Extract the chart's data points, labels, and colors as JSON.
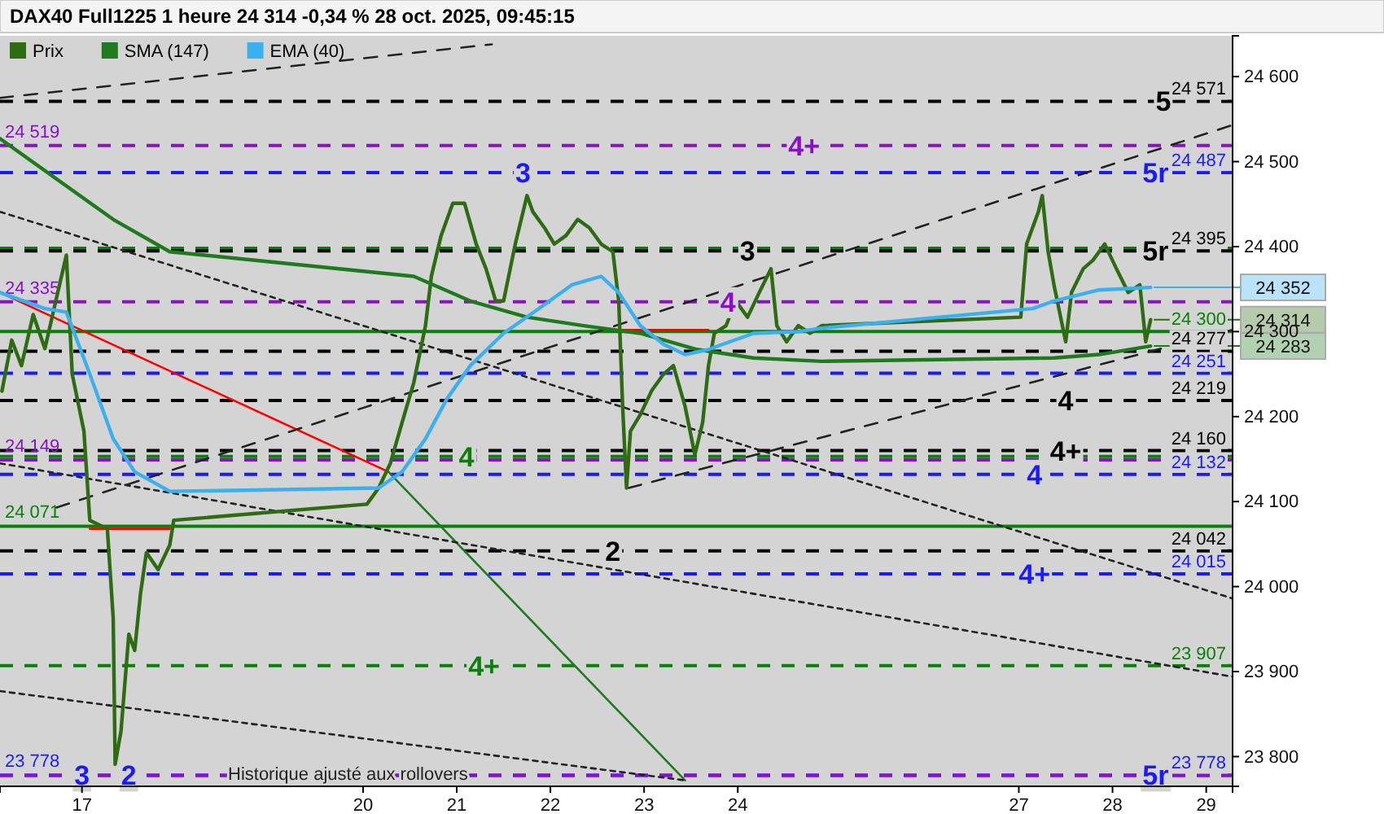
{
  "chart_data": {
    "type": "line",
    "title": "DAX40 Full1225 1 heure 24 314 -0,34 % 28 oct. 2025, 09:45:15",
    "xlim": [
      "2025-10-16T03:00",
      "2025-10-29T06:45"
    ],
    "ylim": [
      23765,
      24648
    ],
    "xticks": [
      {
        "value": "2025-10-17",
        "label": "17"
      },
      {
        "value": "2025-10-20",
        "label": "20"
      },
      {
        "value": "2025-10-21",
        "label": "21"
      },
      {
        "value": "2025-10-22",
        "label": "22"
      },
      {
        "value": "2025-10-23",
        "label": "23"
      },
      {
        "value": "2025-10-24",
        "label": "24"
      },
      {
        "value": "2025-10-27",
        "label": "27"
      },
      {
        "value": "2025-10-28",
        "label": "28"
      },
      {
        "value": "2025-10-29",
        "label": "29"
      }
    ],
    "yticks": [
      {
        "value": 23800,
        "label": "23 800"
      },
      {
        "value": 23900,
        "label": "23 900"
      },
      {
        "value": 24000,
        "label": "24 000"
      },
      {
        "value": 24100,
        "label": "24 100"
      },
      {
        "value": 24200,
        "label": "24 200"
      },
      {
        "value": 24300,
        "label": "24 300"
      },
      {
        "value": 24400,
        "label": "24 400"
      },
      {
        "value": 24500,
        "label": "24 500"
      },
      {
        "value": 24600,
        "label": "24 600"
      }
    ],
    "legend": "top left",
    "series": [
      {
        "name": "Prix",
        "color": "#2e6b12",
        "line_style": "solid",
        "x": [
          "2025-10-16T03:30",
          "2025-10-16T06:00",
          "2025-10-16T08:30",
          "2025-10-16T11:30",
          "2025-10-16T14:30",
          "2025-10-16T17:30",
          "2025-10-16T20:00",
          "2025-10-16T21:30",
          "2025-10-17T00:30",
          "2025-10-17T02:00",
          "2025-10-17T06:30",
          "2025-10-17T08:00",
          "2025-10-17T08:30",
          "2025-10-17T10:00",
          "2025-10-17T12:00",
          "2025-10-17T13:30",
          "2025-10-17T15:00",
          "2025-10-17T16:30",
          "2025-10-17T19:30",
          "2025-10-17T22:30",
          "2025-10-17T23:30",
          "2025-10-20T01:00",
          "2025-10-20T04:00",
          "2025-10-20T07:00",
          "2025-10-20T10:00",
          "2025-10-20T13:00",
          "2025-10-20T16:00",
          "2025-10-20T17:30",
          "2025-10-20T20:00",
          "2025-10-20T23:00",
          "2025-10-21T02:00",
          "2025-10-21T05:00",
          "2025-10-21T07:30",
          "2025-10-21T10:00",
          "2025-10-21T12:00",
          "2025-10-21T15:00",
          "2025-10-21T18:00",
          "2025-10-21T19:30",
          "2025-10-21T22:30",
          "2025-10-22T01:00",
          "2025-10-22T04:00",
          "2025-10-22T07:00",
          "2025-10-22T10:00",
          "2025-10-22T13:00",
          "2025-10-22T16:00",
          "2025-10-22T17:30",
          "2025-10-22T18:30",
          "2025-10-22T19:30",
          "2025-10-22T20:30",
          "2025-10-22T23:00",
          "2025-10-23T02:00",
          "2025-10-23T05:00",
          "2025-10-23T07:30",
          "2025-10-23T10:30",
          "2025-10-23T13:00",
          "2025-10-23T15:00",
          "2025-10-23T16:30",
          "2025-10-23T18:00",
          "2025-10-23T21:00",
          "2025-10-23T23:30",
          "2025-10-24T02:30",
          "2025-10-24T05:30",
          "2025-10-24T08:30",
          "2025-10-24T10:00",
          "2025-10-24T12:30",
          "2025-10-24T15:30",
          "2025-10-24T18:30",
          "2025-10-24T21:30",
          "2025-10-27T00:30",
          "2025-10-27T02:00",
          "2025-10-27T05:00",
          "2025-10-27T06:00",
          "2025-10-27T07:30",
          "2025-10-27T09:00",
          "2025-10-27T12:00",
          "2025-10-27T13:30",
          "2025-10-27T16:30",
          "2025-10-27T19:00",
          "2025-10-27T22:00",
          "2025-10-28T01:00",
          "2025-10-28T04:00",
          "2025-10-28T07:00",
          "2025-10-28T08:30",
          "2025-10-28T09:45"
        ],
        "values": [
          24230,
          24290,
          24260,
          24320,
          24280,
          24340,
          24390,
          24250,
          24183,
          24078,
          24068,
          23963,
          23791,
          23830,
          23944,
          23925,
          23992,
          24040,
          24020,
          24049,
          24078,
          24097,
          24116,
          24145,
          24193,
          24240,
          24307,
          24365,
          24413,
          24451,
          24451,
          24403,
          24374,
          24336,
          24336,
          24403,
          24460,
          24441,
          24422,
          24403,
          24413,
          24432,
          24422,
          24403,
          24394,
          24336,
          24212,
          24116,
          24183,
          24202,
          24231,
          24250,
          24260,
          24212,
          24155,
          24193,
          24260,
          24298,
          24307,
          24336,
          24317,
          24346,
          24374,
          24307,
          24288,
          24307,
          24298,
          24307,
          24317,
          24403,
          24441,
          24460,
          24394,
          24355,
          24288,
          24346,
          24374,
          24384,
          24403,
          24374,
          24346,
          24355,
          24288,
          24314
        ],
        "value_labels": [
          null,
          null,
          null,
          null,
          null,
          null,
          null,
          null,
          null,
          null,
          null,
          null,
          null,
          null,
          null,
          null,
          null,
          null,
          null,
          null,
          null,
          null,
          null,
          null,
          null,
          null,
          null,
          null,
          null,
          null,
          null,
          null,
          null,
          null,
          null,
          null,
          null,
          null,
          null,
          null,
          null,
          null,
          null,
          null,
          null,
          null,
          null,
          null,
          null,
          null,
          null,
          null,
          null,
          null,
          null,
          null,
          null,
          null,
          null,
          null,
          null,
          null,
          null,
          null,
          null,
          null,
          null,
          null,
          null,
          null,
          null,
          null,
          null,
          null,
          null,
          null,
          null,
          null,
          null,
          null,
          null,
          null,
          null,
          "24 314"
        ]
      },
      {
        "name": "SMA (147)",
        "color": "#1f7a1f",
        "line_style": "solid",
        "x": [
          "2025-10-16T03:00",
          "2025-10-17T08:00",
          "2025-10-17T22:30",
          "2025-10-20T13:00",
          "2025-10-21T03:30",
          "2025-10-21T18:00",
          "2025-10-22T08:30",
          "2025-10-22T23:00",
          "2025-10-23T13:30",
          "2025-10-24T04:00",
          "2025-10-24T21:30",
          "2025-10-27T09:00",
          "2025-10-27T20:30",
          "2025-10-28T09:45"
        ],
        "values": [
          24527,
          24432,
          24394,
          24365,
          24336,
          24317,
          24307,
          24298,
          24279,
          24269,
          24265,
          24269,
          24273,
          24283
        ],
        "value_labels": [
          null,
          null,
          null,
          null,
          null,
          null,
          null,
          null,
          null,
          null,
          null,
          null,
          null,
          "24 283"
        ]
      },
      {
        "name": "EMA (40)",
        "color": "#3ab0f0",
        "line_style": "solid",
        "x": [
          "2025-10-16T03:00",
          "2025-10-16T14:30",
          "2025-10-16T20:00",
          "2025-10-17T02:00",
          "2025-10-17T08:00",
          "2025-10-17T13:30",
          "2025-10-17T22:30",
          "2025-10-20T04:00",
          "2025-10-20T10:00",
          "2025-10-20T16:00",
          "2025-10-20T21:30",
          "2025-10-21T03:30",
          "2025-10-21T12:00",
          "2025-10-21T21:00",
          "2025-10-22T05:30",
          "2025-10-22T13:00",
          "2025-10-22T17:30",
          "2025-10-22T23:00",
          "2025-10-23T05:00",
          "2025-10-23T10:30",
          "2025-10-23T16:30",
          "2025-10-24T04:00",
          "2025-10-24T15:30",
          "2025-10-24T21:30",
          "2025-10-27T03:30",
          "2025-10-27T09:00",
          "2025-10-27T20:30",
          "2025-10-28T09:45"
        ],
        "values": [
          24346,
          24327,
          24323,
          24250,
          24174,
          24135,
          24112,
          24116,
          24135,
          24174,
          24221,
          24260,
          24298,
          24327,
          24355,
          24365,
          24346,
          24307,
          24285,
          24273,
          24279,
          24298,
          24300,
          24304,
          24327,
          24336,
          24349,
          24352
        ],
        "value_labels": [
          null,
          null,
          null,
          null,
          null,
          null,
          null,
          null,
          null,
          null,
          null,
          null,
          null,
          null,
          null,
          null,
          null,
          null,
          null,
          null,
          null,
          null,
          null,
          null,
          null,
          null,
          null,
          "24 352"
        ]
      },
      {
        "color": "#ff0000",
        "line_style": "solid",
        "x": [
          "2025-10-16T03:00",
          "2025-10-20T06:30"
        ],
        "values": [
          24346,
          24135
        ]
      },
      {
        "color": "#ff0000",
        "line_style": "solid",
        "x": [
          "2025-10-17T02:00",
          "2025-10-17T22:30"
        ],
        "values": [
          24068,
          24068
        ]
      },
      {
        "color": "#ff0000",
        "line_style": "solid",
        "x": [
          "2025-10-22T18:30",
          "2025-10-23T16:30"
        ],
        "values": [
          24302,
          24302
        ]
      },
      {
        "color": "#1f7a1f",
        "line_style": "solid",
        "x": [
          "2025-10-20T06:30",
          "2025-10-23T10:30"
        ],
        "values": [
          24135,
          23772
        ]
      },
      {
        "color": "#222222",
        "line_style": "dashed",
        "x": [
          "2025-10-16T03:00",
          "2025-10-21T09:00"
        ],
        "values": [
          24575,
          24638
        ]
      },
      {
        "color": "#222222",
        "line_style": "dashed",
        "x": [
          "2025-10-16T17:30",
          "2025-10-29T06:45"
        ],
        "values": [
          24093,
          24543
        ]
      },
      {
        "color": "#222222",
        "line_style": "dashed",
        "x": [
          "2025-10-22T20:00",
          "2025-10-29T06:45"
        ],
        "values": [
          24116,
          24302
        ]
      },
      {
        "color": "#222222",
        "line_style": "dotted",
        "x": [
          "2025-10-16T03:00",
          "2025-10-29T06:45"
        ],
        "values": [
          24441,
          23986
        ]
      },
      {
        "color": "#222222",
        "line_style": "dotted",
        "x": [
          "2025-10-16T03:00",
          "2025-10-29T06:45"
        ],
        "values": [
          24145,
          23894
        ]
      },
      {
        "color": "#222222",
        "line_style": "dotted",
        "x": [
          "2025-10-16T03:00",
          "2025-10-23T10:30"
        ],
        "values": [
          23877,
          23772
        ]
      }
    ],
    "ref_lines": [
      {
        "axis": "y",
        "value": 24571,
        "label": "24 571",
        "color": "#000000",
        "line_style": "dashed"
      },
      {
        "axis": "y",
        "value": 24519,
        "color": "#8a10c8",
        "line_style": "dashed"
      },
      {
        "axis": "y",
        "value": 24487,
        "label": "24 487",
        "color": "#1a1aff",
        "line_style": "dashed"
      },
      {
        "axis": "y",
        "value": 24398,
        "color": "#0a800a",
        "line_style": "dashed"
      },
      {
        "axis": "y",
        "value": 24395,
        "label": "24 395",
        "color": "#000000",
        "line_style": "dashed"
      },
      {
        "axis": "y",
        "value": 24335,
        "color": "#8a10c8",
        "line_style": "dashed"
      },
      {
        "axis": "y",
        "value": 24300,
        "label": "24 300",
        "color": "#0a800a",
        "line_style": "solid"
      },
      {
        "axis": "y",
        "value": 24277,
        "label": "24 277",
        "color": "#000000",
        "line_style": "dashed"
      },
      {
        "axis": "y",
        "value": 24251,
        "label": "24 251",
        "color": "#1a1aff",
        "line_style": "dashed"
      },
      {
        "axis": "y",
        "value": 24219,
        "label": "24 219",
        "color": "#000000",
        "line_style": "dashed"
      },
      {
        "axis": "y",
        "value": 24160,
        "label": "24 160",
        "color": "#000000",
        "line_style": "dashed"
      },
      {
        "axis": "y",
        "value": 24153,
        "color": "#0a800a",
        "line_style": "dashed"
      },
      {
        "axis": "y",
        "value": 24149,
        "color": "#8a10c8",
        "line_style": "dashed"
      },
      {
        "axis": "y",
        "value": 24132,
        "label": "24 132",
        "color": "#1a1aff",
        "line_style": "dashed"
      },
      {
        "axis": "y",
        "value": 24071,
        "color": "#0a800a",
        "line_style": "solid"
      },
      {
        "axis": "y",
        "value": 24042,
        "label": "24 042",
        "color": "#000000",
        "line_style": "dashed"
      },
      {
        "axis": "y",
        "value": 24015,
        "label": "24 015",
        "color": "#1a1aff",
        "line_style": "dashed"
      },
      {
        "axis": "y",
        "value": 23907,
        "label": "23 907",
        "color": "#0a800a",
        "line_style": "dashed"
      },
      {
        "axis": "y",
        "value": 23778,
        "label": "23 778",
        "color": "#1a1aff",
        "line_style": "dashed"
      },
      {
        "axis": "y",
        "value": 23778,
        "color": "#8a10c8",
        "line_style": "dashed"
      }
    ],
    "annotations": [
      {
        "text": "5",
        "x": "2025-10-28T13:00",
        "y": 24571
      },
      {
        "text": "4+",
        "x": "2025-10-24T17:00",
        "y": 24519
      },
      {
        "text": "3",
        "x": "2025-10-21T17:00",
        "y": 24487
      },
      {
        "text": "5r",
        "x": "2025-10-28T11:00",
        "y": 24487
      },
      {
        "text": "3",
        "x": "2025-10-24T02:30",
        "y": 24395
      },
      {
        "text": "5r",
        "x": "2025-10-28T11:00",
        "y": 24395
      },
      {
        "text": "4",
        "x": "2025-10-23T21:30",
        "y": 24335
      },
      {
        "text": "4",
        "x": "2025-10-27T12:00",
        "y": 24219
      },
      {
        "text": "4+",
        "x": "2025-10-27T12:00",
        "y": 24160
      },
      {
        "text": "4",
        "x": "2025-10-21T02:30",
        "y": 24153
      },
      {
        "text": "4",
        "x": "2025-10-27T04:00",
        "y": 24132
      },
      {
        "text": "2",
        "x": "2025-10-22T16:00",
        "y": 24042
      },
      {
        "text": "4+",
        "x": "2025-10-27T04:00",
        "y": 24015
      },
      {
        "text": "4+",
        "x": "2025-10-21T07:00",
        "y": 23907
      },
      {
        "text": "3",
        "x": "2025-10-17T00:00",
        "y": 23778
      },
      {
        "text": "2",
        "x": "2025-10-17T12:00",
        "y": 23778
      },
      {
        "text": "5r",
        "x": "2025-10-28T11:00",
        "y": 23778
      },
      {
        "text": "24 519",
        "x": "2025-10-16T03:00",
        "y": 24519
      },
      {
        "text": "24 335",
        "x": "2025-10-16T03:00",
        "y": 24335
      },
      {
        "text": "24 149",
        "x": "2025-10-16T03:00",
        "y": 24149
      },
      {
        "text": "24 071",
        "x": "2025-10-16T03:00",
        "y": 24071
      },
      {
        "text": "23 778",
        "x": "2025-10-16T03:00",
        "y": 23778
      },
      "Historique ajusté aux rollovers"
    ]
  }
}
